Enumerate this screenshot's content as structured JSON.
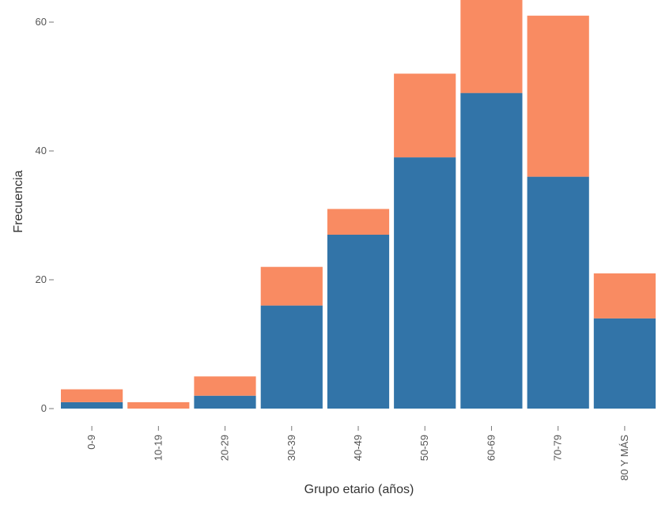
{
  "chart_data": {
    "type": "bar",
    "stacked": true,
    "title": "",
    "xlabel": "Grupo etario (años)",
    "ylabel": "Frecuencia",
    "categories": [
      "0-9",
      "10-19",
      "20-29",
      "30-39",
      "40-49",
      "50-59",
      "60-69",
      "70-79",
      "80 Y MÁS"
    ],
    "series": [
      {
        "values": [
          1,
          0,
          2,
          16,
          27,
          39,
          49,
          36,
          14
        ]
      },
      {
        "values": [
          2,
          1,
          3,
          6,
          4,
          13,
          15,
          25,
          7
        ]
      }
    ],
    "ylim": [
      -3,
      64
    ],
    "yticks": [
      0,
      20,
      40,
      60
    ],
    "ytick_labels": [
      "0",
      "20",
      "40",
      "60"
    ],
    "grid": false,
    "legend": "none"
  },
  "colors": {
    "series": [
      "#3274a8",
      "#f98b62"
    ],
    "background": "#ffffff"
  }
}
